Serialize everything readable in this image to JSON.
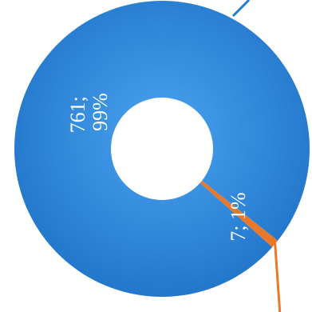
{
  "chart_data": {
    "type": "pie",
    "variant": "doughnut",
    "categories": [
      "",
      ""
    ],
    "series": [
      {
        "values": [
          761,
          7
        ]
      }
    ],
    "slices": [
      {
        "value": 761,
        "percent": "99%",
        "label_line1": "761;",
        "label_line2": "99%",
        "color": "#2f86d9"
      },
      {
        "value": 7,
        "percent": "1%",
        "label_line1": "7; 1%",
        "label_line2": "",
        "color": "#e8782a"
      }
    ],
    "leader_line_colors": [
      "#1a7fd4",
      "#e8782a"
    ],
    "legend": "none",
    "title": ""
  }
}
